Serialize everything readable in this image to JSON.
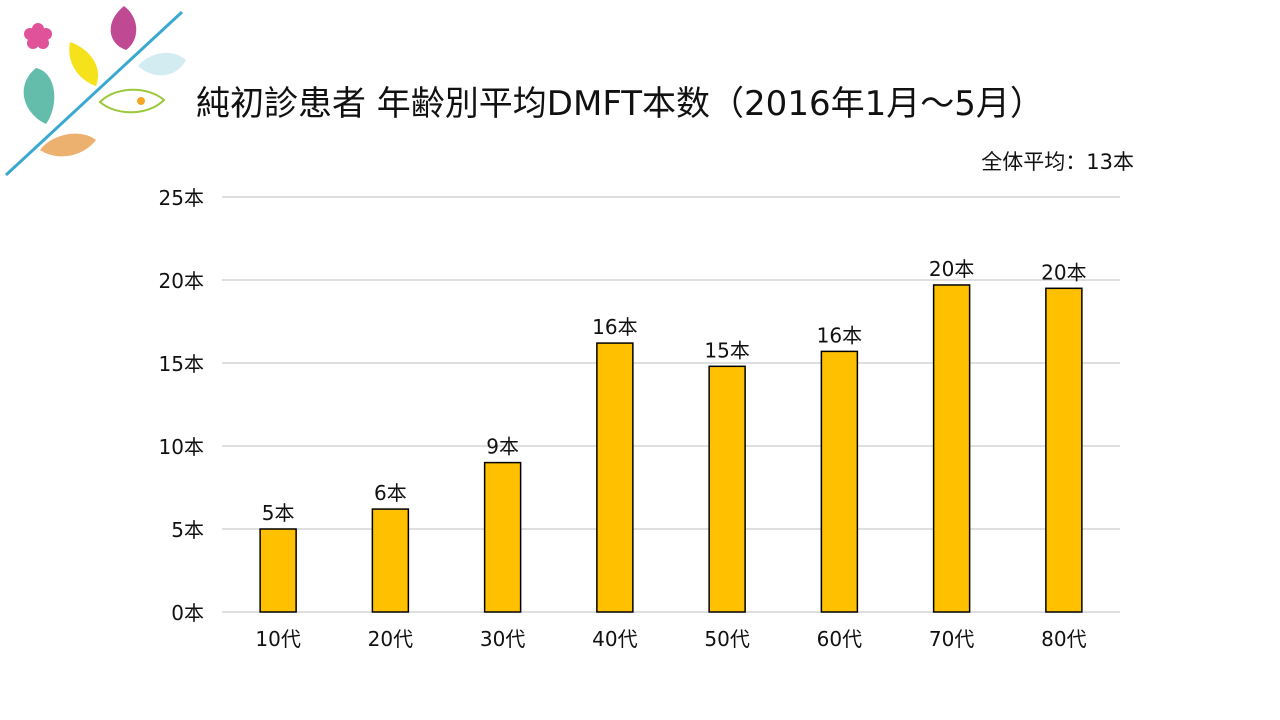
{
  "slide": {
    "title": "純初診患者 年齢別平均DMFT本数（2016年1月～5月）",
    "average_label": "全体平均：13本"
  },
  "colors": {
    "bar_fill": "#FFC000",
    "bar_stroke": "#000000",
    "gridline": "#BFBFBF",
    "deco_line": "#3AA9CF",
    "deco_pink_flower": "#E0529A",
    "deco_purple_leaf": "#BF4A93",
    "deco_yellow_leaf": "#F5E21B",
    "deco_lightblue_leaf": "#D3ECF1",
    "deco_teal_leaf": "#64BCAA",
    "deco_green_leaf": "#9CC83C",
    "deco_orange_leaf": "#EDB16F",
    "deco_center_dot": "#F6A623"
  },
  "chart_data": {
    "type": "bar",
    "title": "",
    "xlabel": "",
    "ylabel": "",
    "categories": [
      "10代",
      "20代",
      "30代",
      "40代",
      "50代",
      "60代",
      "70代",
      "80代"
    ],
    "values": [
      5.0,
      6.2,
      9.0,
      16.2,
      14.8,
      15.7,
      19.7,
      19.5
    ],
    "data_labels": [
      "5本",
      "6本",
      "9本",
      "16本",
      "15本",
      "16本",
      "20本",
      "20本"
    ],
    "ylim": [
      0,
      25
    ],
    "yticks": [
      0,
      5,
      10,
      15,
      20,
      25
    ],
    "ytick_labels": [
      "0本",
      "5本",
      "10本",
      "15本",
      "20本",
      "25本"
    ],
    "grid": true,
    "legend": "none"
  }
}
